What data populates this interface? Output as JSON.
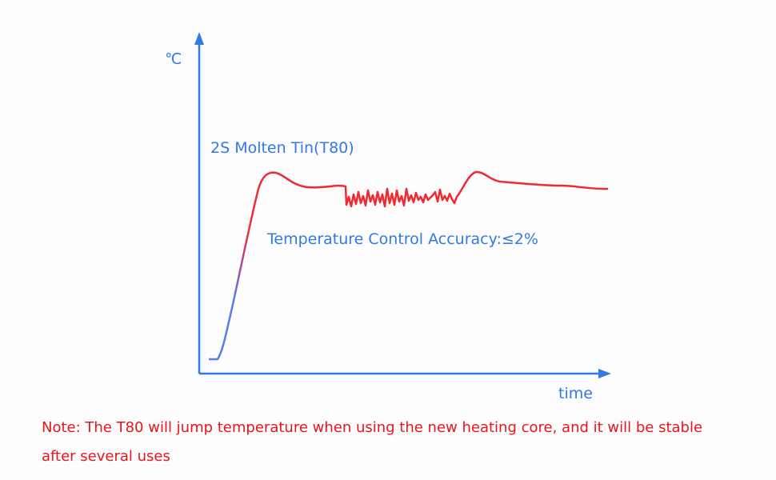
{
  "diagram": {
    "y_axis_label": "℃",
    "x_axis_label": "time",
    "curve_label": "2S Molten Tin(T80)",
    "accuracy_label": "Temperature Control Accuracy:≤2%",
    "note_lines": [
      "Note: The T80 will jump temperature when using the new heating core, and it will be stable",
      "after several uses"
    ]
  }
}
